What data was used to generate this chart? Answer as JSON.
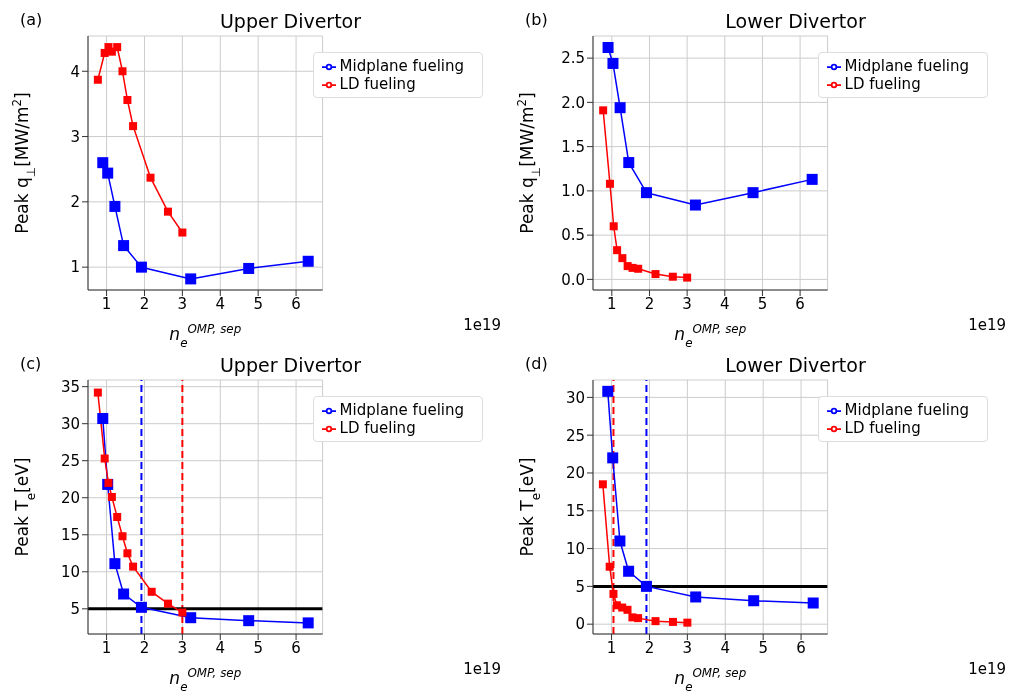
{
  "chart_data": [
    {
      "type": "line",
      "title": "Upper Divertor",
      "xlabel": "n$_{e}$$^{OMP, sep}$",
      "ylabel": "Peak  q$_{⊥}$[MW/m$^{2}$]",
      "annotations": [
        "(a)",
        "1e19"
      ],
      "xlim": [
        0.51,
        6.7
      ],
      "xticks": [
        1,
        2,
        3,
        4,
        5,
        6
      ],
      "ylim": [
        0.65,
        4.54
      ],
      "yticks": [
        1,
        2,
        3,
        4
      ],
      "grid": true,
      "legend": "top right",
      "marker": "square",
      "series": [
        {
          "name": "Midplane fueling",
          "color": "#0000ff",
          "x": [
            0.9,
            1.03,
            1.22,
            1.45,
            1.92,
            3.22,
            4.75,
            6.32
          ],
          "values": [
            2.6,
            2.44,
            1.93,
            1.33,
            1.0,
            0.82,
            0.98,
            1.09
          ]
        },
        {
          "name": "LD fueling",
          "color": "#ff0000",
          "x": [
            0.77,
            0.95,
            1.05,
            1.14,
            1.28,
            1.42,
            1.55,
            1.7,
            2.16,
            2.62,
            3.0
          ],
          "values": [
            3.87,
            4.28,
            4.37,
            4.3,
            4.37,
            4.0,
            3.56,
            3.16,
            2.37,
            1.85,
            1.53
          ]
        }
      ]
    },
    {
      "type": "line",
      "title": "Lower Divertor",
      "xlabel": "n$_{e}$$^{OMP, sep}$",
      "ylabel": "Peak  q$_{⊥}$[MW/m$^{2}$]",
      "annotations": [
        "(b)",
        "1e19"
      ],
      "xlim": [
        0.5,
        6.73
      ],
      "xticks": [
        1,
        2,
        3,
        4,
        5,
        6
      ],
      "ylim": [
        -0.12,
        2.75
      ],
      "yticks": [
        {
          "value": 0,
          "label": "0.0"
        },
        0.5,
        {
          "value": 1,
          "label": "1.0"
        },
        1.5,
        {
          "value": 2,
          "label": "2.0"
        },
        2.5
      ],
      "grid": true,
      "legend": "top right",
      "marker": "square",
      "series": [
        {
          "name": "Midplane fueling",
          "color": "#0000ff",
          "x": [
            0.9,
            1.03,
            1.22,
            1.45,
            1.92,
            3.22,
            4.75,
            6.32
          ],
          "values": [
            2.62,
            2.44,
            1.94,
            1.32,
            0.98,
            0.84,
            0.98,
            1.13
          ]
        },
        {
          "name": "LD fueling",
          "color": "#ff0000",
          "x": [
            0.77,
            0.95,
            1.05,
            1.14,
            1.28,
            1.42,
            1.55,
            1.7,
            2.16,
            2.62,
            3.0
          ],
          "values": [
            1.91,
            1.08,
            0.6,
            0.33,
            0.24,
            0.15,
            0.13,
            0.12,
            0.06,
            0.03,
            0.02
          ]
        }
      ]
    },
    {
      "type": "line",
      "title": "Upper Divertor",
      "xlabel": "n$_{e}$$^{OMP, sep}$",
      "ylabel": "Peak  T$_{e}$[eV]",
      "annotations": [
        "(c)",
        "1e19"
      ],
      "xlim": [
        0.51,
        6.7
      ],
      "xticks": [
        1,
        2,
        3,
        4,
        5,
        6
      ],
      "ylim": [
        1.6,
        35.9
      ],
      "yticks": [
        5,
        10,
        15,
        20,
        25,
        30,
        35
      ],
      "grid": true,
      "legend": "top right",
      "marker": "square",
      "series": [
        {
          "name": "Midplane fueling",
          "color": "#0000ff",
          "x": [
            0.9,
            1.03,
            1.22,
            1.45,
            1.92,
            3.22,
            4.75,
            6.32
          ],
          "values": [
            30.7,
            21.8,
            11.1,
            7.0,
            5.2,
            3.8,
            3.4,
            3.1
          ]
        },
        {
          "name": "LD fueling",
          "color": "#ff0000",
          "x": [
            0.77,
            0.95,
            1.05,
            1.14,
            1.28,
            1.42,
            1.55,
            1.7,
            2.19,
            2.62,
            3.0
          ],
          "values": [
            34.2,
            25.3,
            22.0,
            20.1,
            17.4,
            14.8,
            12.5,
            10.7,
            7.3,
            5.7,
            4.5
          ]
        }
      ],
      "ref_lines": [
        {
          "axis": "x",
          "value": 1.92,
          "color": "#0000ff",
          "line_style": "dashed"
        },
        {
          "axis": "x",
          "value": 3.0,
          "color": "#ff0000",
          "line_style": "dashed"
        },
        {
          "axis": "y",
          "value": 5,
          "color": "#000000",
          "line_style": "solid"
        }
      ]
    },
    {
      "type": "line",
      "title": "Lower Divertor",
      "xlabel": "n$_{e}$$^{OMP, sep}$",
      "ylabel": "Peak  T$_{e}$[eV]",
      "annotations": [
        "(d)",
        "1e19"
      ],
      "xlim": [
        0.51,
        6.7
      ],
      "xticks": [
        1,
        2,
        3,
        4,
        5,
        6
      ],
      "ylim": [
        -1.3,
        32.3
      ],
      "yticks": [
        0,
        5,
        10,
        15,
        20,
        25,
        30
      ],
      "grid": true,
      "legend": "top right",
      "marker": "square",
      "series": [
        {
          "name": "Midplane fueling",
          "color": "#0000ff",
          "x": [
            0.9,
            1.03,
            1.22,
            1.45,
            1.92,
            3.22,
            4.75,
            6.32
          ],
          "values": [
            30.8,
            22.0,
            11.0,
            7.0,
            5.0,
            3.6,
            3.1,
            2.8
          ]
        },
        {
          "name": "LD fueling",
          "color": "#ff0000",
          "x": [
            0.77,
            0.95,
            1.05,
            1.14,
            1.28,
            1.42,
            1.55,
            1.7,
            2.16,
            2.62,
            3.0
          ],
          "values": [
            18.5,
            7.6,
            4.0,
            2.5,
            2.2,
            1.9,
            0.9,
            0.8,
            0.4,
            0.3,
            0.2
          ]
        }
      ],
      "ref_lines": [
        {
          "axis": "x",
          "value": 1.05,
          "color": "#ff0000",
          "line_style": "dashed"
        },
        {
          "axis": "x",
          "value": 1.92,
          "color": "#0000ff",
          "line_style": "dashed"
        },
        {
          "axis": "y",
          "value": 5,
          "color": "#000000",
          "line_style": "solid"
        }
      ]
    }
  ]
}
